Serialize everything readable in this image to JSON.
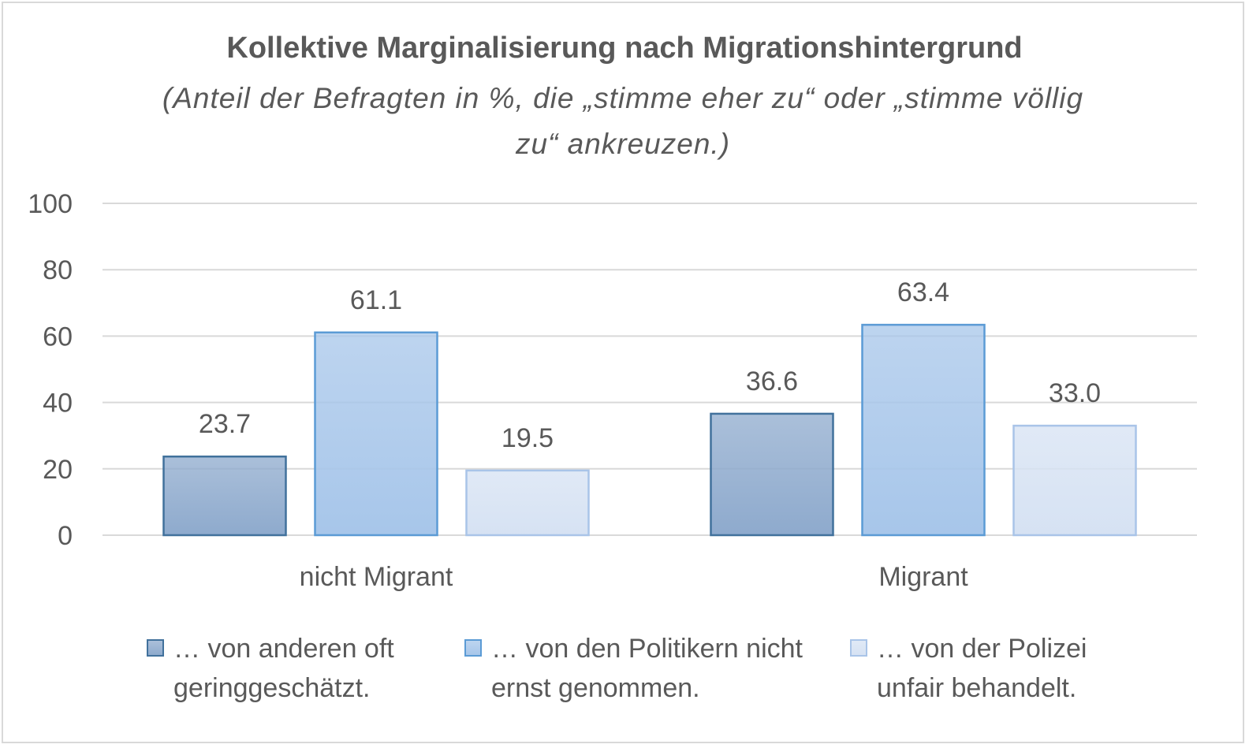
{
  "chart_data": {
    "type": "bar",
    "title": "Kollektive Marginalisierung nach Migrationshintergrund",
    "subtitle": "(Anteil der Befragten in %, die „stimme eher zu“ oder „stimme völlig zu“ ankreuzen.)",
    "categories": [
      "nicht Migrant",
      "Migrant"
    ],
    "series": [
      {
        "name": "… von anderen oft geringgeschätzt.",
        "values": [
          23.7,
          36.6
        ],
        "color": "#8eaacd",
        "stroke": "#41719c"
      },
      {
        "name": "… von den Politikern nicht ernst genommen.",
        "values": [
          61.1,
          63.4
        ],
        "color": "#a7c6ea",
        "stroke": "#5b9bd5"
      },
      {
        "name": "… von der Polizei unfair behandelt.",
        "values": [
          19.5,
          33.0
        ],
        "color": "#d6e2f3",
        "stroke": "#a9c4e8"
      }
    ],
    "data_labels": [
      [
        "23.7",
        "36.6"
      ],
      [
        "61.1",
        "63.4"
      ],
      [
        "19.5",
        "33.0"
      ]
    ],
    "ylim": [
      0,
      100
    ],
    "yticks": [
      "0",
      "20",
      "40",
      "60",
      "80",
      "100"
    ],
    "grid": true,
    "legend_position": "bottom"
  }
}
